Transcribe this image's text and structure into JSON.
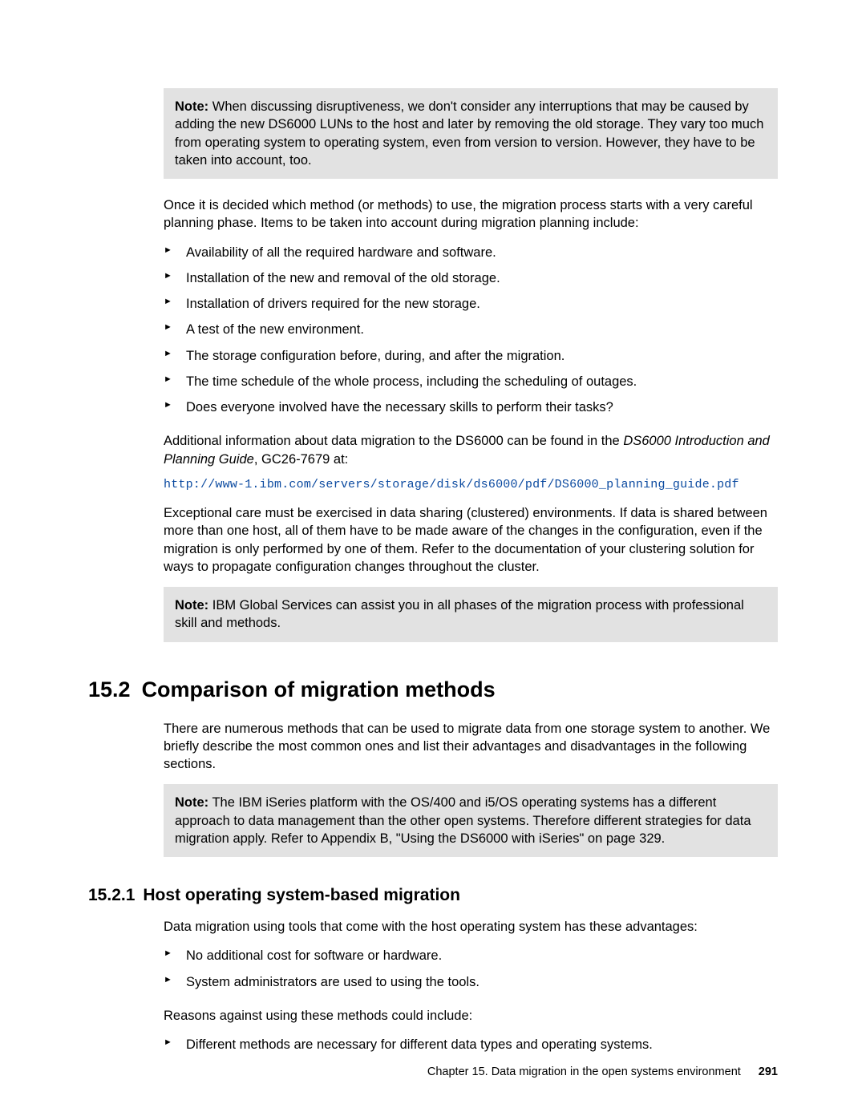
{
  "note1": {
    "label": "Note:",
    "text": " When discussing disruptiveness, we don't consider any interruptions that may be caused by adding the new DS6000 LUNs to the host and later by removing the old storage. They vary too much from operating system to operating system, even from version to version. However, they have to be taken into account, too."
  },
  "para_planning": "Once it is decided which method (or methods) to use, the migration process starts with a very careful planning phase. Items to be taken into account during migration planning include:",
  "planning_items": [
    "Availability of all the required hardware and software.",
    "Installation of the new and removal of the old storage.",
    "Installation of drivers required for the new storage.",
    "A test of the new environment.",
    "The storage configuration before, during, and after the migration.",
    "The time schedule of the whole process, including the scheduling of outages.",
    "Does everyone involved have the necessary skills to perform their tasks?"
  ],
  "additional_info_pre": "Additional information about data migration to the DS6000 can be found in the ",
  "additional_info_italic": "DS6000 Introduction and Planning Guide",
  "additional_info_post": ", GC26-7679 at:",
  "url": "http://www-1.ibm.com/servers/storage/disk/ds6000/pdf/DS6000_planning_guide.pdf",
  "exceptional_care": "Exceptional care must be exercised in data sharing (clustered) environments. If data is shared between more than one host, all of them have to be made aware of the changes in the configuration, even if the migration is only performed by one of them. Refer to the documentation of your clustering solution for ways to propagate configuration changes throughout the cluster.",
  "note2": {
    "label": "Note:",
    "text": " IBM Global Services can assist you in all phases of the migration process with professional skill and methods."
  },
  "section": {
    "num": "15.2",
    "title": "Comparison of migration methods"
  },
  "section_intro": "There are numerous methods that can be used to migrate data from one storage system to another. We briefly describe the most common ones and list their advantages and disadvantages in the following sections.",
  "note3": {
    "label": "Note:",
    "text": " The IBM iSeries platform with the OS/400 and i5/OS operating systems has a different approach to data management than the other open systems. Therefore different strategies for data migration apply. Refer to Appendix B, \"Using the DS6000 with iSeries\" on page 329."
  },
  "subsection": {
    "num": "15.2.1",
    "title": "Host operating system-based migration"
  },
  "sub_intro": "Data migration using tools that come with the host operating system has these advantages:",
  "advantages": [
    "No additional cost for software or hardware.",
    "System administrators are used to using the tools."
  ],
  "reasons_against": "Reasons against using these methods could include:",
  "disadvantages": [
    "Different methods are necessary for different data types and operating systems."
  ],
  "footer": {
    "chapter": "Chapter 15. Data migration in the open systems environment",
    "page": "291"
  }
}
